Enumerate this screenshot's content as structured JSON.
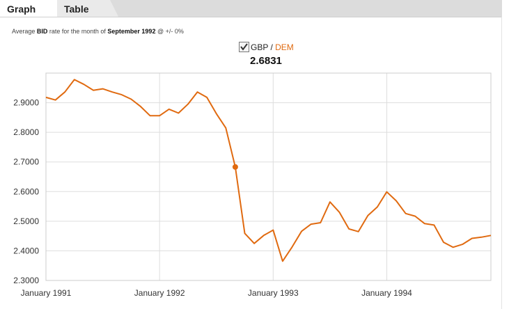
{
  "tabs": {
    "graph": "Graph",
    "table": "Table"
  },
  "summary": {
    "prefix": "Average ",
    "bid": "BID",
    "middle": " rate for the month of ",
    "month": "September 1992",
    "suffix": " @ +/- 0%"
  },
  "legend": {
    "base": "GBP",
    "separator": " / ",
    "quote": "DEM",
    "checked": true,
    "value": "2.6831"
  },
  "colors": {
    "line": "#e06a10",
    "quote_text": "#e06a10",
    "grid": "#dddddd",
    "plot_border": "#cccccc"
  },
  "chart_data": {
    "type": "line",
    "title": "",
    "xlabel": "",
    "ylabel": "",
    "series": [
      {
        "name": "GBP / DEM",
        "x": [
          "1991-01",
          "1991-02",
          "1991-03",
          "1991-04",
          "1991-05",
          "1991-06",
          "1991-07",
          "1991-08",
          "1991-09",
          "1991-10",
          "1991-11",
          "1991-12",
          "1992-01",
          "1992-02",
          "1992-03",
          "1992-04",
          "1992-05",
          "1992-06",
          "1992-07",
          "1992-08",
          "1992-09",
          "1992-10",
          "1992-11",
          "1992-12",
          "1993-01",
          "1993-02",
          "1993-03",
          "1993-04",
          "1993-05",
          "1993-06",
          "1993-07",
          "1993-08",
          "1993-09",
          "1993-10",
          "1993-11",
          "1993-12",
          "1994-01",
          "1994-02",
          "1994-03",
          "1994-04",
          "1994-05",
          "1994-06",
          "1994-07",
          "1994-08",
          "1994-09",
          "1994-10",
          "1994-11",
          "1994-12"
        ],
        "values": [
          2.918,
          2.909,
          2.936,
          2.978,
          2.962,
          2.942,
          2.947,
          2.936,
          2.927,
          2.912,
          2.887,
          2.856,
          2.856,
          2.878,
          2.865,
          2.895,
          2.936,
          2.918,
          2.863,
          2.815,
          2.6831,
          2.459,
          2.425,
          2.452,
          2.47,
          2.365,
          2.413,
          2.466,
          2.49,
          2.495,
          2.565,
          2.53,
          2.474,
          2.465,
          2.519,
          2.548,
          2.599,
          2.569,
          2.526,
          2.517,
          2.492,
          2.487,
          2.429,
          2.412,
          2.422,
          2.442,
          2.446,
          2.452
        ]
      }
    ],
    "highlight": {
      "x": "1992-09",
      "y": 2.6831
    },
    "x_ticks": [
      {
        "x": "1991-01",
        "label": "January 1991"
      },
      {
        "x": "1992-01",
        "label": "January 1992"
      },
      {
        "x": "1993-01",
        "label": "January 1993"
      },
      {
        "x": "1994-01",
        "label": "January 1994"
      }
    ],
    "y_ticks": [
      "2.9000",
      "2.8000",
      "2.7000",
      "2.6000",
      "2.5000",
      "2.4000",
      "2.3000"
    ],
    "ylim": [
      2.3,
      3.0
    ],
    "xlim": [
      "1991-01",
      "1994-12"
    ],
    "grid": true,
    "legend_position": "top-center"
  }
}
